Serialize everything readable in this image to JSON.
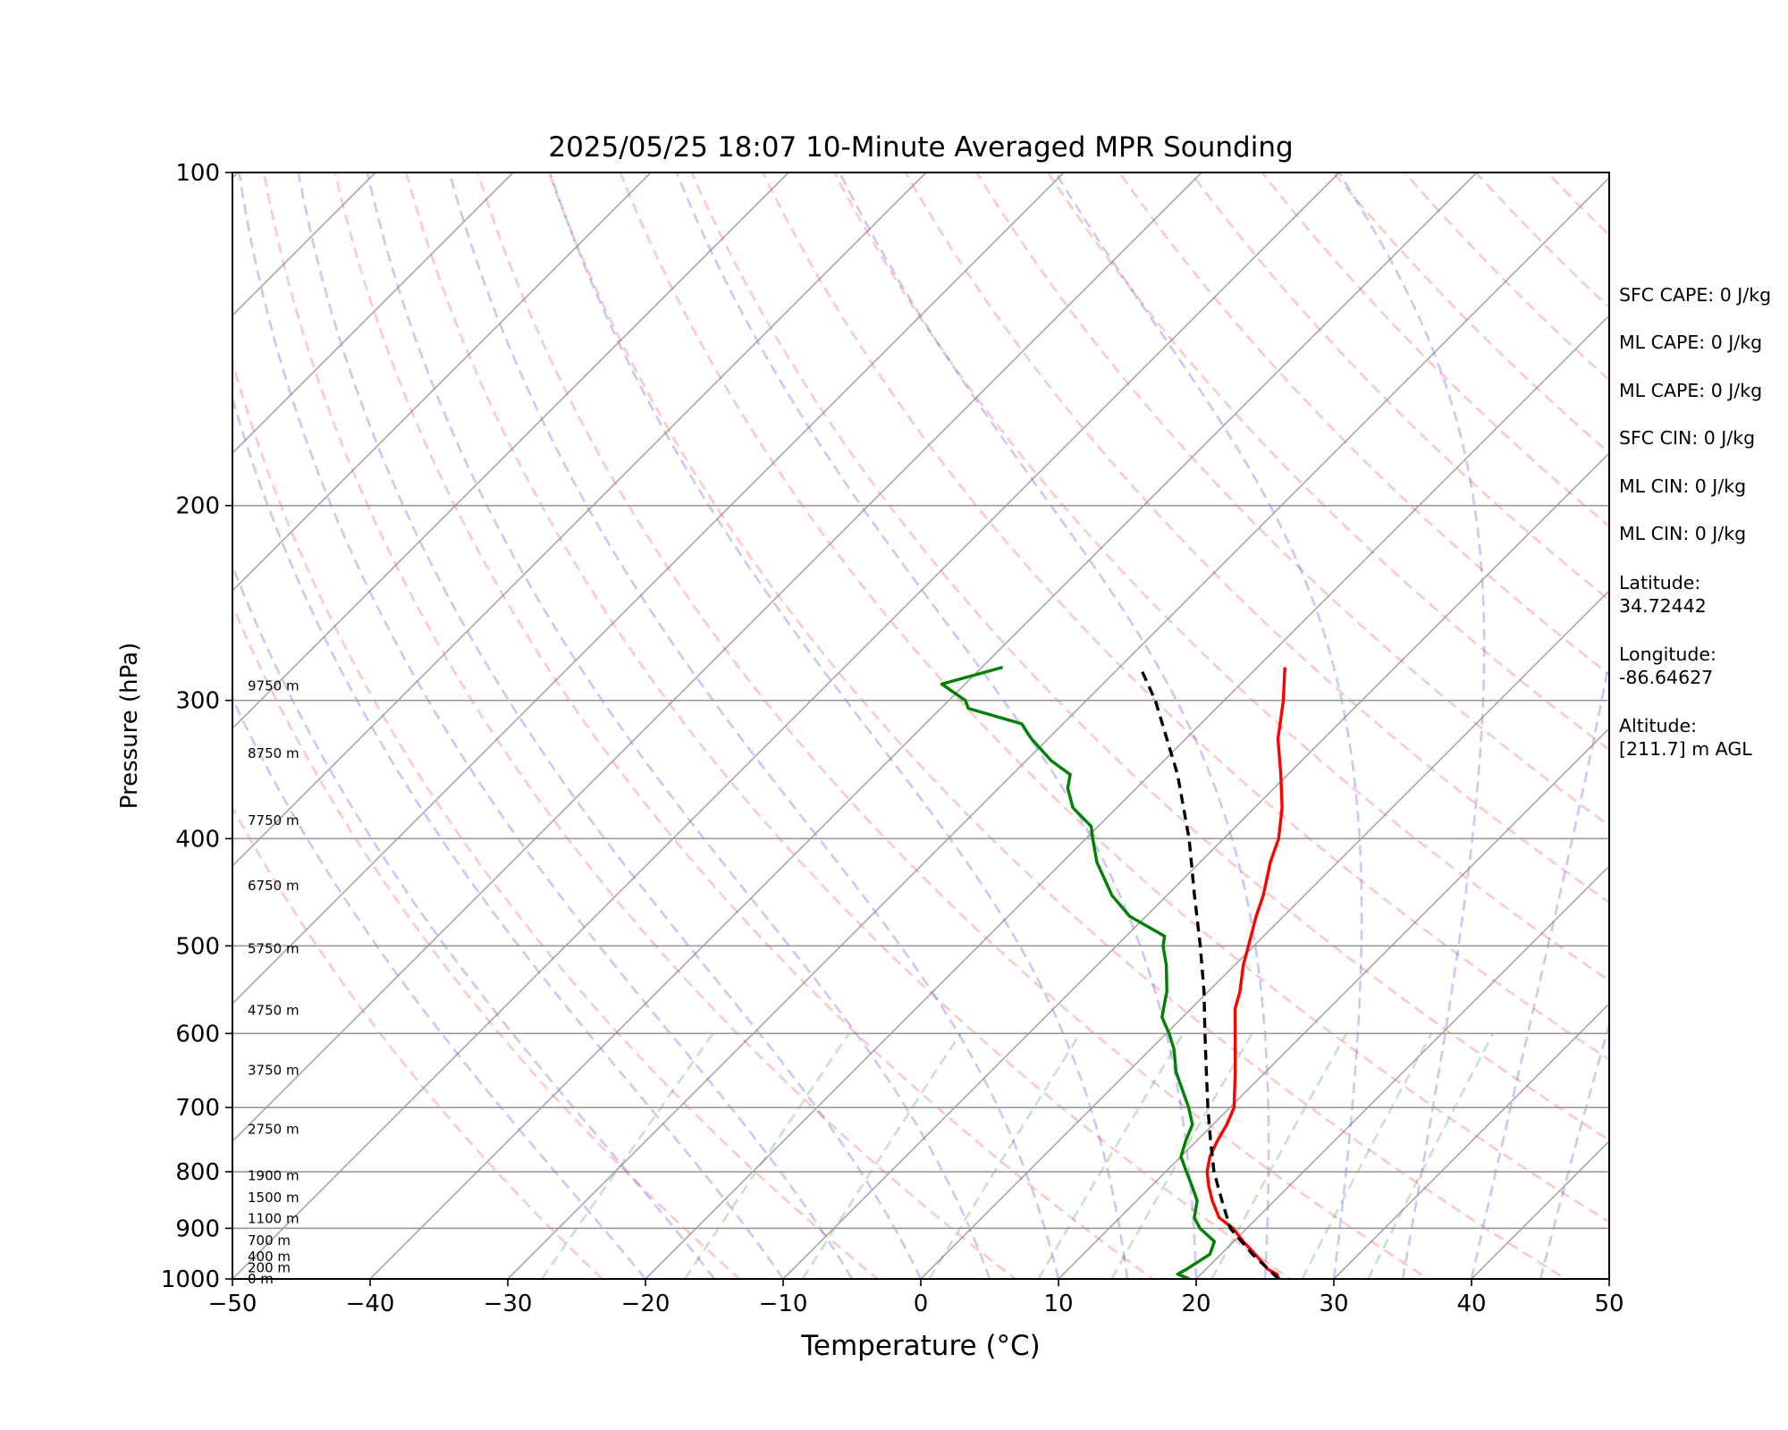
{
  "chart_data": {
    "type": "line",
    "title": "2025/05/25 18:07 10-Minute Averaged MPR Sounding",
    "xlabel": "Temperature (°C)",
    "ylabel": "Pressure (hPa)",
    "xlim": [
      -50,
      50
    ],
    "ylim": [
      1000,
      100
    ],
    "yscale": "log",
    "skew": "temperature axis skewed 45°",
    "grid": true,
    "x_ticks": [
      -50,
      -40,
      -30,
      -20,
      -10,
      0,
      10,
      20,
      30,
      40,
      50
    ],
    "x_tick_labels": [
      "−50",
      "−40",
      "−30",
      "−20",
      "−10",
      "0",
      "10",
      "20",
      "30",
      "40",
      "50"
    ],
    "y_ticks": [
      100,
      200,
      300,
      400,
      500,
      600,
      700,
      800,
      900,
      1000
    ],
    "y_tick_labels": [
      "100",
      "200",
      "300",
      "400",
      "500",
      "600",
      "700",
      "800",
      "900",
      "1000"
    ],
    "series": [
      {
        "color": "#ff0000",
        "points": [
          [
            1000,
            26.0
          ],
          [
            990,
            25.5
          ],
          [
            980,
            24.5
          ],
          [
            950,
            22.5
          ],
          [
            925,
            20.7
          ],
          [
            900,
            19.0
          ],
          [
            880,
            17.2
          ],
          [
            850,
            15.5
          ],
          [
            825,
            14.2
          ],
          [
            800,
            13.0
          ],
          [
            775,
            12.1
          ],
          [
            750,
            11.5
          ],
          [
            725,
            11.0
          ],
          [
            700,
            10.3
          ],
          [
            650,
            7.8
          ],
          [
            600,
            5.0
          ],
          [
            570,
            3.2
          ],
          [
            550,
            2.3
          ],
          [
            520,
            0.6
          ],
          [
            500,
            -0.4
          ],
          [
            470,
            -2.0
          ],
          [
            450,
            -3.0
          ],
          [
            420,
            -4.9
          ],
          [
            400,
            -6.0
          ],
          [
            375,
            -8.0
          ],
          [
            350,
            -10.5
          ],
          [
            325,
            -13.3
          ],
          [
            300,
            -15.7
          ],
          [
            280,
            -18.0
          ]
        ]
      },
      {
        "color": "#008000",
        "points": [
          [
            1000,
            19.5
          ],
          [
            990,
            18.3
          ],
          [
            980,
            18.6
          ],
          [
            950,
            19.2
          ],
          [
            925,
            18.6
          ],
          [
            900,
            16.6
          ],
          [
            880,
            15.4
          ],
          [
            850,
            14.4
          ],
          [
            825,
            13.0
          ],
          [
            800,
            11.5
          ],
          [
            775,
            10.0
          ],
          [
            750,
            9.2
          ],
          [
            725,
            8.5
          ],
          [
            700,
            7.0
          ],
          [
            650,
            3.5
          ],
          [
            620,
            1.7
          ],
          [
            600,
            0.2
          ],
          [
            580,
            -1.5
          ],
          [
            560,
            -2.5
          ],
          [
            550,
            -3.0
          ],
          [
            520,
            -5.0
          ],
          [
            510,
            -5.8
          ],
          [
            500,
            -6.6
          ],
          [
            490,
            -7.2
          ],
          [
            470,
            -11.2
          ],
          [
            450,
            -14.0
          ],
          [
            420,
            -17.5
          ],
          [
            400,
            -19.5
          ],
          [
            390,
            -20.5
          ],
          [
            375,
            -23.2
          ],
          [
            360,
            -25.0
          ],
          [
            350,
            -25.8
          ],
          [
            340,
            -28.2
          ],
          [
            325,
            -31.2
          ],
          [
            315,
            -33.0
          ],
          [
            305,
            -38.0
          ],
          [
            300,
            -38.8
          ],
          [
            290,
            -41.7
          ],
          [
            280,
            -38.5
          ]
        ]
      },
      {
        "color": "#000000",
        "dashed": true,
        "points": [
          [
            1000,
            26.0
          ],
          [
            950,
            22.3
          ],
          [
            900,
            18.8
          ],
          [
            850,
            16.2
          ],
          [
            800,
            13.5
          ],
          [
            750,
            11.0
          ],
          [
            700,
            8.4
          ],
          [
            650,
            5.7
          ],
          [
            600,
            2.8
          ],
          [
            550,
            -0.3
          ],
          [
            500,
            -3.9
          ],
          [
            450,
            -8.0
          ],
          [
            400,
            -12.5
          ],
          [
            350,
            -18.0
          ],
          [
            300,
            -25.0
          ],
          [
            280,
            -28.5
          ]
        ]
      }
    ],
    "height_labels": [
      {
        "text": "0 m",
        "p": 1000
      },
      {
        "text": "200 m",
        "p": 977
      },
      {
        "text": "400 m",
        "p": 955
      },
      {
        "text": "700 m",
        "p": 923
      },
      {
        "text": "1100 m",
        "p": 882
      },
      {
        "text": "1500 m",
        "p": 844
      },
      {
        "text": "1900 m",
        "p": 807
      },
      {
        "text": "2750 m",
        "p": 732
      },
      {
        "text": "3750 m",
        "p": 648
      },
      {
        "text": "4750 m",
        "p": 572
      },
      {
        "text": "5750 m",
        "p": 503
      },
      {
        "text": "6750 m",
        "p": 441
      },
      {
        "text": "7750 m",
        "p": 385
      },
      {
        "text": "8750 m",
        "p": 335
      },
      {
        "text": "9750 m",
        "p": 291
      }
    ]
  },
  "annotations": {
    "sfc_cape": "SFC CAPE: 0 J/kg",
    "ml_cape_1": "ML CAPE: 0 J/kg",
    "ml_cape_2": "ML CAPE: 0 J/kg",
    "sfc_cin": "SFC CIN: 0 J/kg",
    "ml_cin_1": "ML CIN: 0 J/kg",
    "ml_cin_2": "ML CIN: 0 J/kg",
    "latitude_label": "Latitude:",
    "latitude_value": "34.72442",
    "longitude_label": "Longitude:",
    "longitude_value": "-86.64627",
    "altitude_label": "Altitude:",
    "altitude_value": "[211.7] m AGL"
  }
}
